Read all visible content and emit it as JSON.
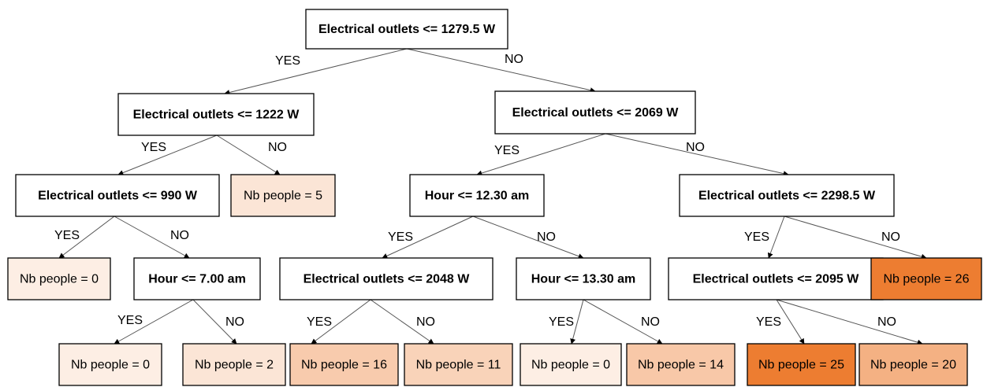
{
  "nodes": [
    {
      "label": "Electrical outlets <= 1279.5 W"
    },
    {
      "label": "Electrical outlets <= 1222 W"
    },
    {
      "label": "Electrical outlets <= 2069 W"
    },
    {
      "label": "Electrical outlets <= 990 W"
    },
    {
      "label": "Nb people = 5"
    },
    {
      "label": "Hour <= 12.30 am"
    },
    {
      "label": "Electrical outlets <= 2298.5 W"
    },
    {
      "label": "Nb people = 0"
    },
    {
      "label": "Hour <= 7.00 am"
    },
    {
      "label": "Electrical outlets <= 2048 W"
    },
    {
      "label": "Hour <= 13.30 am"
    },
    {
      "label": "Electrical outlets <= 2095 W"
    },
    {
      "label": "Nb people = 26"
    },
    {
      "label": "Nb people = 0"
    },
    {
      "label": "Nb people = 2"
    },
    {
      "label": "Nb people = 16"
    },
    {
      "label": "Nb people = 11"
    },
    {
      "label": "Nb people = 0"
    },
    {
      "label": "Nb people = 14"
    },
    {
      "label": "Nb people = 25"
    },
    {
      "label": "Nb people = 20"
    }
  ],
  "edges": [
    {
      "label": "YES"
    },
    {
      "label": "NO"
    },
    {
      "label": "YES"
    },
    {
      "label": "NO"
    },
    {
      "label": "YES"
    },
    {
      "label": "NO"
    },
    {
      "label": "YES"
    },
    {
      "label": "NO"
    },
    {
      "label": "YES"
    },
    {
      "label": "NO"
    },
    {
      "label": "YES"
    },
    {
      "label": "NO"
    },
    {
      "label": "YES"
    },
    {
      "label": "NO"
    },
    {
      "label": "YES"
    },
    {
      "label": "NO"
    },
    {
      "label": "YES"
    },
    {
      "label": "NO"
    },
    {
      "label": "YES"
    },
    {
      "label": "NO"
    }
  ]
}
